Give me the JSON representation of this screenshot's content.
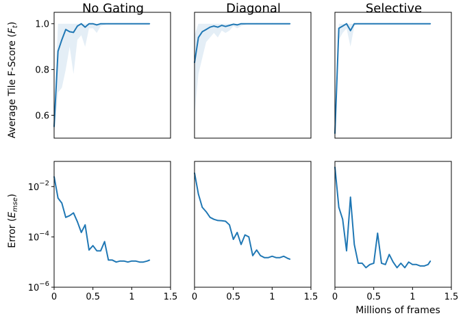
{
  "colors": {
    "line": "#1f77b4",
    "band": "#1f77b4"
  },
  "chart_data": {
    "type": "line",
    "columns": [
      "No Gating",
      "Diagonal",
      "Selective"
    ],
    "xlabel": "Millions of frames",
    "xlim": [
      0,
      1.5
    ],
    "xticks": [
      "0",
      "0.5",
      "1",
      "1.5"
    ],
    "rows": [
      {
        "ylabel_main": "Average Tile F-Score (",
        "ylabel_var": "F",
        "ylabel_sub": "t",
        "ylabel_end": ")",
        "scale": "linear",
        "ylim": [
          0.5,
          1.05
        ],
        "yticks": [
          {
            "value": 0.6,
            "label": "0.6"
          },
          {
            "value": 0.8,
            "label": "0.8"
          },
          {
            "value": 1.0,
            "label": "1.0"
          }
        ],
        "series": [
          {
            "x": [
              0,
              0.05,
              0.1,
              0.15,
              0.2,
              0.25,
              0.3,
              0.35,
              0.4,
              0.45,
              0.5,
              0.55,
              0.6,
              0.7,
              0.8,
              1.0,
              1.23
            ],
            "y": [
              0.55,
              0.88,
              0.93,
              0.975,
              0.965,
              0.962,
              0.99,
              1.0,
              0.985,
              1.0,
              1.0,
              0.995,
              1.0,
              1.0,
              1.0,
              1.0,
              1.0
            ],
            "lower": [
              0.52,
              0.7,
              0.72,
              0.8,
              0.9,
              0.78,
              0.93,
              0.95,
              0.9,
              0.98,
              0.98,
              0.96,
              0.99,
              1.0,
              1.0,
              1.0,
              1.0
            ],
            "upper": [
              0.6,
              1.0,
              1.0,
              1.0,
              1.0,
              1.0,
              1.0,
              1.0,
              1.0,
              1.0,
              1.0,
              1.0,
              1.0,
              1.0,
              1.0,
              1.0,
              1.0
            ]
          },
          {
            "x": [
              0,
              0.05,
              0.1,
              0.15,
              0.2,
              0.25,
              0.3,
              0.35,
              0.4,
              0.45,
              0.5,
              0.55,
              0.6,
              0.7,
              0.8,
              1.0,
              1.23
            ],
            "y": [
              0.83,
              0.94,
              0.965,
              0.975,
              0.985,
              0.99,
              0.985,
              0.993,
              0.988,
              0.993,
              0.998,
              0.995,
              1.0,
              1.0,
              1.0,
              1.0,
              1.0
            ],
            "lower": [
              0.6,
              0.78,
              0.85,
              0.92,
              0.94,
              0.96,
              0.94,
              0.97,
              0.96,
              0.97,
              0.99,
              0.98,
              0.99,
              1.0,
              1.0,
              1.0,
              1.0
            ],
            "upper": [
              0.95,
              1.0,
              1.0,
              1.0,
              1.0,
              1.0,
              1.0,
              1.0,
              1.0,
              1.0,
              1.0,
              1.0,
              1.0,
              1.0,
              1.0,
              1.0,
              1.0
            ]
          },
          {
            "x": [
              0,
              0.05,
              0.1,
              0.15,
              0.2,
              0.25,
              0.3,
              0.4,
              0.5,
              0.7,
              1.0,
              1.23
            ],
            "y": [
              0.52,
              0.98,
              0.99,
              1.0,
              0.97,
              1.0,
              1.0,
              1.0,
              1.0,
              1.0,
              1.0,
              1.0
            ],
            "lower": [
              0.5,
              0.93,
              0.96,
              0.98,
              0.9,
              0.99,
              1.0,
              1.0,
              1.0,
              1.0,
              1.0,
              1.0
            ],
            "upper": [
              0.55,
              1.0,
              1.0,
              1.0,
              1.0,
              1.0,
              1.0,
              1.0,
              1.0,
              1.0,
              1.0,
              1.0
            ]
          }
        ]
      },
      {
        "ylabel_main": "Error (",
        "ylabel_var": "E",
        "ylabel_sub": "mse",
        "ylabel_end": ")",
        "scale": "log",
        "ylim": [
          1e-06,
          0.1
        ],
        "yticks": [
          {
            "value": 1e-06,
            "base": "10",
            "exp": "−6"
          },
          {
            "value": 0.0001,
            "base": "10",
            "exp": "−4"
          },
          {
            "value": 0.01,
            "base": "10",
            "exp": "−2"
          }
        ],
        "series": [
          {
            "x": [
              0,
              0.05,
              0.1,
              0.15,
              0.2,
              0.25,
              0.3,
              0.35,
              0.4,
              0.45,
              0.5,
              0.55,
              0.6,
              0.65,
              0.7,
              0.75,
              0.8,
              0.85,
              0.9,
              0.95,
              1.0,
              1.05,
              1.1,
              1.15,
              1.2,
              1.23
            ],
            "y": [
              0.025,
              0.0035,
              0.0022,
              0.0006,
              0.0007,
              0.0009,
              0.0004,
              0.00015,
              0.0003,
              3e-05,
              4.5e-05,
              2.8e-05,
              2.8e-05,
              6.5e-05,
              1.2e-05,
              1.2e-05,
              1e-05,
              1.1e-05,
              1.1e-05,
              1e-05,
              1.1e-05,
              1.1e-05,
              1e-05,
              1e-05,
              1.1e-05,
              1.2e-05
            ]
          },
          {
            "x": [
              0,
              0.05,
              0.1,
              0.15,
              0.2,
              0.25,
              0.3,
              0.35,
              0.4,
              0.45,
              0.5,
              0.55,
              0.6,
              0.65,
              0.7,
              0.75,
              0.8,
              0.85,
              0.9,
              0.95,
              1.0,
              1.05,
              1.1,
              1.15,
              1.2,
              1.23
            ],
            "y": [
              0.035,
              0.005,
              0.0015,
              0.001,
              0.0006,
              0.0005,
              0.00045,
              0.00044,
              0.00042,
              0.0003,
              8e-05,
              0.00015,
              5e-05,
              0.00012,
              0.0001,
              1.8e-05,
              3e-05,
              1.8e-05,
              1.5e-05,
              1.5e-05,
              1.7e-05,
              1.5e-05,
              1.5e-05,
              1.7e-05,
              1.4e-05,
              1.3e-05
            ]
          },
          {
            "x": [
              0,
              0.05,
              0.1,
              0.15,
              0.2,
              0.25,
              0.3,
              0.35,
              0.4,
              0.45,
              0.5,
              0.55,
              0.6,
              0.65,
              0.7,
              0.75,
              0.8,
              0.85,
              0.9,
              0.95,
              1.0,
              1.05,
              1.1,
              1.15,
              1.2,
              1.23
            ],
            "y": [
              0.06,
              0.0015,
              0.0005,
              2.8e-05,
              0.0038,
              5e-05,
              9e-06,
              9e-06,
              6e-06,
              8e-06,
              9e-06,
              0.00014,
              9e-06,
              8e-06,
              2e-05,
              1e-05,
              6e-06,
              9e-06,
              6e-06,
              1e-05,
              8e-06,
              8e-06,
              7e-06,
              7e-06,
              8e-06,
              1.1e-05
            ]
          }
        ]
      }
    ]
  }
}
